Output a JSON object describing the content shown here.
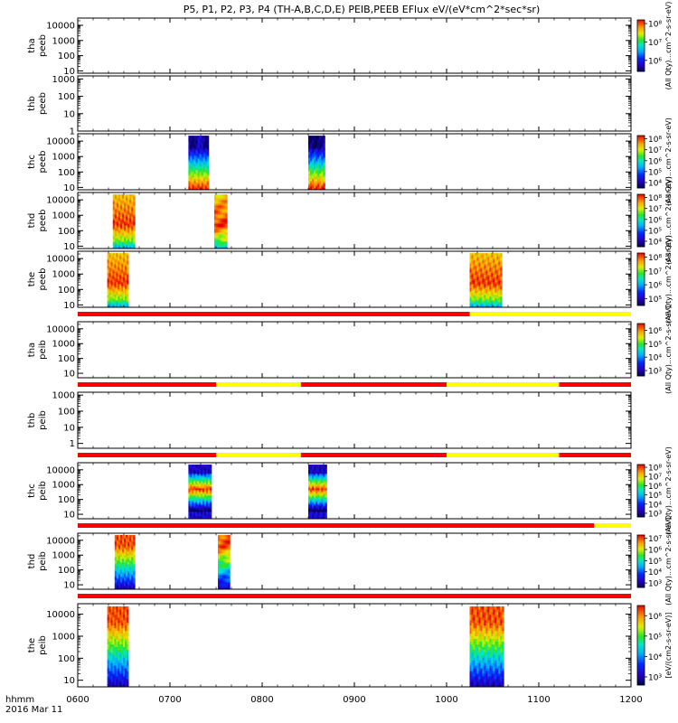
{
  "chart_data": {
    "type": "heatmap",
    "title": "P5, P1, P2, P3, P4 (TH-A,B,C,D,E) PEIB,PEEB EFlux eV/(eV*cm^2*sec*sr)",
    "time_axis": {
      "label_hhmm": "hhmm",
      "label_date": "2016 Mar 11",
      "ticks": [
        "0600",
        "0700",
        "0800",
        "0900",
        "1000",
        "1100",
        "1200"
      ],
      "range_hours": [
        6,
        12
      ]
    },
    "colors": {
      "flag_red": "#ff0000",
      "flag_yellow": "#ffff00"
    },
    "panels": [
      {
        "id": "tha-peeb",
        "ylabel": [
          "tha",
          "peeb"
        ],
        "yscale": "log",
        "ylim": [
          7,
          30000
        ],
        "yticks": [
          {
            "v": 10,
            "t": "10"
          },
          {
            "v": 100,
            "t": "100"
          },
          {
            "v": 1000,
            "t": "1000"
          },
          {
            "v": 10000,
            "t": "10000"
          }
        ],
        "colorbar": {
          "ticks": [
            {
              "v": 6,
              "t": "10⁶"
            },
            {
              "v": 7,
              "t": "10⁷"
            },
            {
              "v": 8,
              "t": "10⁸"
            }
          ],
          "min": 5.4,
          "max": 8.2,
          "label": "(All Qty)...cm^2-s-sr-eV)"
        },
        "spectra": []
      },
      {
        "id": "thb-peeb",
        "ylabel": [
          "thb",
          "peeb"
        ],
        "yscale": "log",
        "ylim": [
          1,
          1500
        ],
        "yticks": [
          {
            "v": 1,
            "t": "1"
          },
          {
            "v": 10,
            "t": "10"
          },
          {
            "v": 100,
            "t": "100"
          },
          {
            "v": 1000,
            "t": "1000"
          }
        ],
        "colorbar": null,
        "spectra": []
      },
      {
        "id": "thc-peeb",
        "ylabel": [
          "thc",
          "peeb"
        ],
        "yscale": "log",
        "ylim": [
          7,
          30000
        ],
        "yticks": [
          {
            "v": 10,
            "t": "10"
          },
          {
            "v": 100,
            "t": "100"
          },
          {
            "v": 1000,
            "t": "1000"
          },
          {
            "v": 10000,
            "t": "10000"
          }
        ],
        "colorbar": {
          "ticks": [
            {
              "v": 4,
              "t": "10⁴"
            },
            {
              "v": 5,
              "t": "10⁵"
            },
            {
              "v": 6,
              "t": "10⁶"
            },
            {
              "v": 7,
              "t": "10⁷"
            },
            {
              "v": 8,
              "t": "10⁸"
            }
          ],
          "min": 3.5,
          "max": 8.3,
          "label": "(All Qty)...cm^2-s-sr-eV)"
        },
        "spectra": [
          {
            "t0": 7.2,
            "t1": 7.42,
            "profile": "peaked_low"
          },
          {
            "t0": 8.5,
            "t1": 8.68,
            "profile": "peaked_low"
          }
        ]
      },
      {
        "id": "thd-peeb",
        "ylabel": [
          "thd",
          "peeb"
        ],
        "yscale": "log",
        "ylim": [
          7,
          30000
        ],
        "yticks": [
          {
            "v": 10,
            "t": "10"
          },
          {
            "v": 100,
            "t": "100"
          },
          {
            "v": 1000,
            "t": "1000"
          },
          {
            "v": 10000,
            "t": "10000"
          }
        ],
        "colorbar": {
          "ticks": [
            {
              "v": 4,
              "t": "10⁴"
            },
            {
              "v": 5,
              "t": "10⁵"
            },
            {
              "v": 6,
              "t": "10⁶"
            },
            {
              "v": 7,
              "t": "10⁷"
            },
            {
              "v": 8,
              "t": "10⁸"
            }
          ],
          "min": 3.5,
          "max": 8.3,
          "label": "(All Qty)...cm^2-s-sr-eV)"
        },
        "spectra": [
          {
            "t0": 6.38,
            "t1": 6.62,
            "profile": "hot"
          },
          {
            "t0": 7.48,
            "t1": 7.62,
            "profile": "hot"
          }
        ]
      },
      {
        "id": "the-peeb",
        "ylabel": [
          "the",
          "peeb"
        ],
        "yscale": "log",
        "ylim": [
          7,
          30000
        ],
        "yticks": [
          {
            "v": 10,
            "t": "10"
          },
          {
            "v": 100,
            "t": "100"
          },
          {
            "v": 1000,
            "t": "1000"
          },
          {
            "v": 10000,
            "t": "10000"
          }
        ],
        "colorbar": {
          "ticks": [
            {
              "v": 5,
              "t": "10⁵"
            },
            {
              "v": 6,
              "t": "10⁶"
            },
            {
              "v": 7,
              "t": "10⁷"
            },
            {
              "v": 8,
              "t": "10⁸"
            }
          ],
          "min": 4.5,
          "max": 8.3,
          "label": "(All Qty)...cm^2-s-sr-eV)"
        },
        "spectra": [
          {
            "t0": 6.32,
            "t1": 6.55,
            "profile": "hot"
          },
          {
            "t0": 10.25,
            "t1": 10.6,
            "profile": "hot"
          }
        ],
        "flag_after": [
          {
            "t0": 6.0,
            "t1": 10.25,
            "c": "red"
          },
          {
            "t0": 10.25,
            "t1": 12.0,
            "c": "yellow"
          }
        ]
      },
      {
        "id": "tha-peib",
        "ylabel": [
          "tha",
          "peib"
        ],
        "yscale": "log",
        "ylim": [
          5,
          30000
        ],
        "yticks": [
          {
            "v": 10,
            "t": "10"
          },
          {
            "v": 100,
            "t": "100"
          },
          {
            "v": 1000,
            "t": "1000"
          },
          {
            "v": 10000,
            "t": "10000"
          }
        ],
        "colorbar": {
          "ticks": [
            {
              "v": 3,
              "t": "10³"
            },
            {
              "v": 4,
              "t": "10⁴"
            },
            {
              "v": 5,
              "t": "10⁵"
            },
            {
              "v": 6,
              "t": "10⁶"
            }
          ],
          "min": 2.6,
          "max": 6.5,
          "label": "(All Qty)...cm^2-s-sr-eV)"
        },
        "spectra": [],
        "flag_after": [
          {
            "t0": 6.0,
            "t1": 7.5,
            "c": "red"
          },
          {
            "t0": 7.5,
            "t1": 8.42,
            "c": "yellow"
          },
          {
            "t0": 8.42,
            "t1": 10.0,
            "c": "red"
          },
          {
            "t0": 10.0,
            "t1": 11.22,
            "c": "yellow"
          },
          {
            "t0": 11.22,
            "t1": 12.0,
            "c": "red"
          }
        ]
      },
      {
        "id": "thb-peib",
        "ylabel": [
          "thb",
          "peib"
        ],
        "yscale": "log",
        "ylim": [
          0.5,
          1500
        ],
        "yticks": [
          {
            "v": 1,
            "t": "1"
          },
          {
            "v": 10,
            "t": "10"
          },
          {
            "v": 100,
            "t": "100"
          },
          {
            "v": 1000,
            "t": "1000"
          }
        ],
        "colorbar": null,
        "spectra": [],
        "flag_after": [
          {
            "t0": 6.0,
            "t1": 7.5,
            "c": "red"
          },
          {
            "t0": 7.5,
            "t1": 8.42,
            "c": "yellow"
          },
          {
            "t0": 8.42,
            "t1": 10.0,
            "c": "red"
          },
          {
            "t0": 10.0,
            "t1": 11.22,
            "c": "yellow"
          },
          {
            "t0": 11.22,
            "t1": 12.0,
            "c": "red"
          }
        ]
      },
      {
        "id": "thc-peib",
        "ylabel": [
          "thc",
          "peib"
        ],
        "yscale": "log",
        "ylim": [
          5,
          30000
        ],
        "yticks": [
          {
            "v": 10,
            "t": "10"
          },
          {
            "v": 100,
            "t": "100"
          },
          {
            "v": 1000,
            "t": "1000"
          },
          {
            "v": 10000,
            "t": "10000"
          }
        ],
        "colorbar": {
          "ticks": [
            {
              "v": 3,
              "t": "10³"
            },
            {
              "v": 4,
              "t": "10⁴"
            },
            {
              "v": 5,
              "t": "10⁵"
            },
            {
              "v": 6,
              "t": "10⁶"
            },
            {
              "v": 7,
              "t": "10⁷"
            },
            {
              "v": 8,
              "t": "10⁸"
            }
          ],
          "min": 2.6,
          "max": 8.3,
          "label": "(All Qty)...cm^2-s-sr-eV)"
        },
        "spectra": [
          {
            "t0": 7.2,
            "t1": 7.45,
            "profile": "banded"
          },
          {
            "t0": 8.5,
            "t1": 8.7,
            "profile": "banded"
          }
        ],
        "flag_after": [
          {
            "t0": 6.0,
            "t1": 11.6,
            "c": "red"
          },
          {
            "t0": 11.6,
            "t1": 12.0,
            "c": "yellow"
          }
        ]
      },
      {
        "id": "thd-peib",
        "ylabel": [
          "thd",
          "peib"
        ],
        "yscale": "log",
        "ylim": [
          5,
          30000
        ],
        "yticks": [
          {
            "v": 10,
            "t": "10"
          },
          {
            "v": 100,
            "t": "100"
          },
          {
            "v": 1000,
            "t": "1000"
          },
          {
            "v": 10000,
            "t": "10000"
          }
        ],
        "colorbar": {
          "ticks": [
            {
              "v": 3,
              "t": "10³"
            },
            {
              "v": 4,
              "t": "10⁴"
            },
            {
              "v": 5,
              "t": "10⁵"
            },
            {
              "v": 6,
              "t": "10⁶"
            },
            {
              "v": 7,
              "t": "10⁷"
            }
          ],
          "min": 2.6,
          "max": 7.3,
          "label": "(All Qty)...cm^2-s-sr-eV)"
        },
        "spectra": [
          {
            "t0": 6.4,
            "t1": 6.62,
            "profile": "ion_hot_top"
          },
          {
            "t0": 7.52,
            "t1": 7.65,
            "profile": "ion_hot_top"
          }
        ],
        "flag_after": [
          {
            "t0": 6.0,
            "t1": 12.0,
            "c": "red"
          }
        ]
      },
      {
        "id": "the-peib",
        "ylabel": [
          "the",
          "peib"
        ],
        "yscale": "log",
        "ylim": [
          5,
          30000
        ],
        "yticks": [
          {
            "v": 10,
            "t": "10"
          },
          {
            "v": 100,
            "t": "100"
          },
          {
            "v": 1000,
            "t": "1000"
          },
          {
            "v": 10000,
            "t": "10000"
          }
        ],
        "colorbar": {
          "ticks": [
            {
              "v": 3,
              "t": "10³"
            },
            {
              "v": 4,
              "t": "10⁴"
            },
            {
              "v": 5,
              "t": "10⁵"
            },
            {
              "v": 6,
              "t": "10⁶"
            }
          ],
          "min": 2.6,
          "max": 6.5,
          "label": "[eV/(cm2-s-sr-eV)]"
        },
        "spectra": [
          {
            "t0": 6.32,
            "t1": 6.55,
            "profile": "ion_hot_top"
          },
          {
            "t0": 10.25,
            "t1": 10.62,
            "profile": "ion_hot_top"
          }
        ]
      }
    ]
  }
}
